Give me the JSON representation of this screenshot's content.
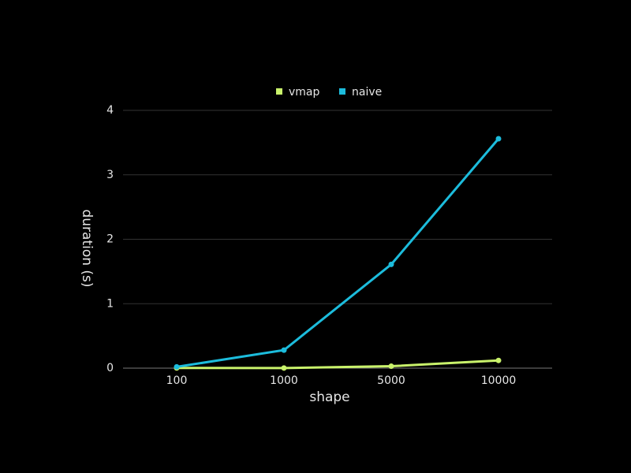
{
  "chart_data": {
    "type": "line",
    "x_label": "shape",
    "y_label": "duration (s)",
    "categories": [
      "100",
      "1000",
      "5000",
      "10000"
    ],
    "series": [
      {
        "name": "vmap",
        "color": "#c9f26b",
        "values": [
          0.003,
          0.002,
          0.03,
          0.12
        ]
      },
      {
        "name": "naive",
        "color": "#1cbcdc",
        "values": [
          0.02,
          0.28,
          1.61,
          3.56
        ]
      }
    ],
    "ylim": [
      0,
      4
    ],
    "yticks": [
      0,
      1,
      2,
      3,
      4
    ],
    "grid": true,
    "legend": "top"
  }
}
